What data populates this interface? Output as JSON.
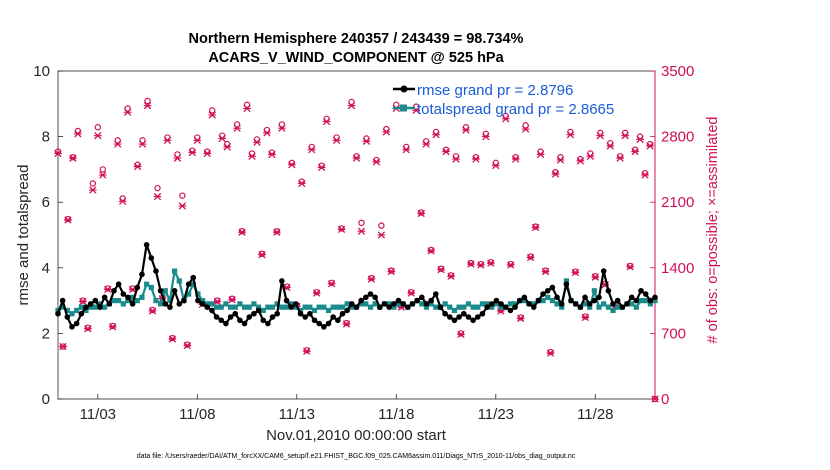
{
  "chart_data": {
    "type": "line",
    "title_line1": "Northern Hemisphere 240357 / 243439 = 98.734%",
    "title_line2": "ACARS_V_WIND_COMPONENT @ 525 hPa",
    "ylabel_left": "rmse and totalspread",
    "ylabel_right": "# of obs: o=possible; ×=assimilated",
    "xlabel": "Nov.01,2010 00:00:00 start",
    "footer": "data file: /Users/raeder/DAI/ATM_forcXX/CAM6_setup/f.e21.FHIST_BGC.f09_025.CAM6assim.011/Diags_NTrS_2010-11/obs_diag_output.nc",
    "x_ticks": [
      {
        "day": 3,
        "label": "11/03"
      },
      {
        "day": 8,
        "label": "11/08"
      },
      {
        "day": 13,
        "label": "11/13"
      },
      {
        "day": 18,
        "label": "11/18"
      },
      {
        "day": 23,
        "label": "11/23"
      },
      {
        "day": 28,
        "label": "11/28"
      }
    ],
    "x_range": [
      1,
      31
    ],
    "y_left": {
      "range": [
        0,
        10
      ],
      "ticks": [
        "0",
        "2",
        "4",
        "6",
        "8",
        "10"
      ]
    },
    "y_right": {
      "range": [
        0,
        3500
      ],
      "ticks": [
        "0",
        "700",
        "1400",
        "2100",
        "2800",
        "3500"
      ]
    },
    "legend": [
      {
        "name": "rmse grand pr = 2.8796",
        "color": "#000000"
      },
      {
        "name": "totalspread grand pr = 2.8665",
        "color": "#1a8a8a"
      }
    ],
    "colors": {
      "rmse": "#000000",
      "spread": "#1a8a8a",
      "obs": "#d1105a"
    },
    "series": [
      {
        "name": "rmse",
        "values": [
          2.6,
          3.0,
          2.5,
          2.2,
          2.3,
          2.6,
          2.8,
          2.9,
          3.0,
          2.8,
          3.1,
          2.9,
          3.3,
          3.5,
          3.2,
          3.1,
          2.9,
          3.4,
          3.8,
          4.7,
          4.3,
          3.9,
          3.3,
          2.9,
          2.8,
          3.3,
          2.9,
          3.0,
          3.5,
          3.7,
          3.0,
          2.9,
          2.8,
          2.7,
          2.5,
          2.4,
          2.3,
          2.5,
          2.6,
          2.4,
          2.3,
          2.5,
          2.6,
          2.7,
          2.4,
          2.3,
          2.5,
          2.6,
          3.6,
          3.0,
          2.8,
          2.9,
          2.6,
          2.5,
          2.6,
          2.4,
          2.3,
          2.2,
          2.3,
          2.5,
          2.4,
          2.6,
          2.7,
          2.9,
          2.8,
          3.0,
          3.1,
          3.2,
          3.1,
          2.8,
          2.9,
          2.8,
          2.9,
          3.0,
          2.9,
          2.8,
          2.9,
          3.0,
          3.1,
          2.9,
          3.0,
          3.2,
          2.8,
          2.6,
          2.5,
          2.4,
          2.5,
          2.6,
          2.5,
          2.4,
          2.5,
          2.6,
          2.8,
          2.9,
          3.0,
          2.9,
          2.8,
          2.7,
          2.8,
          3.0,
          3.1,
          2.9,
          2.8,
          3.0,
          3.2,
          3.3,
          3.4,
          3.1,
          2.9,
          3.5,
          3.0,
          2.9,
          2.8,
          3.1,
          2.9,
          3.0,
          3.1,
          3.9,
          3.3,
          2.9,
          3.0,
          2.8,
          2.9,
          3.1,
          3.0,
          3.3,
          3.2,
          3.0,
          3.1
        ]
      },
      {
        "name": "totalspread",
        "values": [
          2.7,
          2.8,
          2.7,
          2.6,
          2.7,
          2.8,
          2.7,
          2.8,
          2.8,
          2.9,
          2.8,
          2.9,
          3.0,
          3.0,
          2.9,
          3.0,
          3.1,
          3.0,
          3.1,
          3.5,
          3.4,
          3.0,
          2.9,
          3.3,
          3.0,
          3.9,
          3.6,
          3.0,
          3.2,
          3.5,
          3.2,
          3.0,
          2.9,
          2.9,
          2.8,
          2.8,
          2.9,
          2.8,
          2.8,
          2.9,
          2.8,
          2.8,
          2.9,
          2.8,
          2.7,
          2.8,
          2.8,
          2.9,
          2.8,
          2.8,
          2.9,
          2.8,
          2.7,
          2.8,
          2.8,
          2.7,
          2.8,
          2.8,
          2.7,
          2.8,
          2.8,
          2.8,
          2.9,
          2.8,
          2.8,
          2.9,
          2.9,
          2.8,
          2.9,
          2.8,
          2.9,
          2.9,
          2.8,
          2.9,
          2.9,
          2.8,
          2.9,
          3.0,
          2.9,
          2.8,
          2.9,
          2.8,
          2.8,
          2.9,
          2.8,
          2.7,
          2.8,
          2.8,
          2.9,
          2.8,
          2.8,
          2.9,
          2.9,
          2.8,
          2.9,
          2.8,
          2.8,
          2.9,
          2.9,
          3.0,
          3.0,
          2.9,
          2.9,
          3.0,
          3.0,
          3.1,
          3.0,
          2.9,
          2.8,
          3.6,
          3.0,
          2.9,
          2.8,
          2.9,
          2.8,
          3.3,
          2.8,
          2.9,
          2.8,
          2.7,
          2.8,
          2.8,
          2.9,
          2.9,
          2.8,
          3.0,
          3.0,
          2.9,
          3.0
        ]
      }
    ],
    "obs_possible": [
      [
        1.0,
        2640
      ],
      [
        1.25,
        560
      ],
      [
        1.5,
        1920
      ],
      [
        1.75,
        2580
      ],
      [
        2.0,
        2860
      ],
      [
        2.25,
        1050
      ],
      [
        2.5,
        760
      ],
      [
        2.75,
        2300
      ],
      [
        3.0,
        2900
      ],
      [
        3.25,
        2450
      ],
      [
        3.5,
        1180
      ],
      [
        3.75,
        780
      ],
      [
        4.0,
        2760
      ],
      [
        4.25,
        2140
      ],
      [
        4.5,
        3100
      ],
      [
        4.75,
        1180
      ],
      [
        5.0,
        2500
      ],
      [
        5.25,
        2760
      ],
      [
        5.5,
        3180
      ],
      [
        5.75,
        950
      ],
      [
        6.0,
        2250
      ],
      [
        6.25,
        1080
      ],
      [
        6.5,
        2790
      ],
      [
        6.75,
        650
      ],
      [
        7.0,
        2610
      ],
      [
        7.25,
        2170
      ],
      [
        7.5,
        580
      ],
      [
        7.75,
        2650
      ],
      [
        8.0,
        2790
      ],
      [
        8.25,
        1020
      ],
      [
        8.5,
        2640
      ],
      [
        8.75,
        3080
      ],
      [
        9.0,
        1050
      ],
      [
        9.25,
        2810
      ],
      [
        9.5,
        2720
      ],
      [
        9.75,
        1070
      ],
      [
        10.0,
        2930
      ],
      [
        10.25,
        1790
      ],
      [
        10.5,
        3140
      ],
      [
        10.75,
        2620
      ],
      [
        11.0,
        2770
      ],
      [
        11.25,
        1550
      ],
      [
        11.5,
        2870
      ],
      [
        11.75,
        2630
      ],
      [
        12.0,
        1790
      ],
      [
        12.25,
        2930
      ],
      [
        12.5,
        1200
      ],
      [
        12.75,
        2520
      ],
      [
        13.0,
        1000
      ],
      [
        13.25,
        2320
      ],
      [
        13.5,
        520
      ],
      [
        13.75,
        2690
      ],
      [
        14.0,
        1140
      ],
      [
        14.25,
        2490
      ],
      [
        14.5,
        2990
      ],
      [
        14.75,
        1240
      ],
      [
        15.0,
        2790
      ],
      [
        15.25,
        1820
      ],
      [
        15.5,
        810
      ],
      [
        15.75,
        3170
      ],
      [
        16.0,
        2590
      ],
      [
        16.25,
        1880
      ],
      [
        16.5,
        2780
      ],
      [
        16.75,
        1290
      ],
      [
        17.0,
        2550
      ],
      [
        17.25,
        1850
      ],
      [
        17.5,
        2880
      ],
      [
        17.75,
        1370
      ],
      [
        18.0,
        3140
      ],
      [
        18.25,
        990
      ],
      [
        18.5,
        2690
      ],
      [
        18.75,
        1140
      ],
      [
        19.0,
        3120
      ],
      [
        19.25,
        1990
      ],
      [
        19.5,
        2750
      ],
      [
        19.75,
        1590
      ],
      [
        20.0,
        2850
      ],
      [
        20.25,
        1390
      ],
      [
        20.5,
        2660
      ],
      [
        20.75,
        1320
      ],
      [
        21.0,
        2590
      ],
      [
        21.25,
        700
      ],
      [
        21.5,
        2900
      ],
      [
        21.75,
        1450
      ],
      [
        22.0,
        2580
      ],
      [
        22.25,
        1440
      ],
      [
        22.5,
        2830
      ],
      [
        22.75,
        1460
      ],
      [
        23.0,
        2520
      ],
      [
        23.25,
        950
      ],
      [
        23.5,
        3020
      ],
      [
        23.75,
        1440
      ],
      [
        24.0,
        2580
      ],
      [
        24.25,
        870
      ],
      [
        24.5,
        2920
      ],
      [
        24.75,
        1520
      ],
      [
        25.0,
        1840
      ],
      [
        25.25,
        2640
      ],
      [
        25.5,
        1370
      ],
      [
        25.75,
        500
      ],
      [
        26.0,
        2420
      ],
      [
        26.25,
        2580
      ],
      [
        26.75,
        2850
      ],
      [
        27.0,
        1360
      ],
      [
        27.25,
        2560
      ],
      [
        27.5,
        880
      ],
      [
        27.75,
        2620
      ],
      [
        28.0,
        1310
      ],
      [
        28.25,
        2840
      ],
      [
        28.5,
        1230
      ],
      [
        28.75,
        2730
      ],
      [
        29.0,
        1000
      ],
      [
        29.25,
        2590
      ],
      [
        29.5,
        2840
      ],
      [
        29.75,
        1420
      ],
      [
        30.0,
        2660
      ],
      [
        30.25,
        2800
      ],
      [
        30.5,
        2410
      ],
      [
        30.75,
        2720
      ],
      [
        31.0,
        0
      ]
    ],
    "obs_assimilated": [
      [
        1.0,
        2620
      ],
      [
        1.25,
        560
      ],
      [
        1.5,
        1910
      ],
      [
        1.75,
        2570
      ],
      [
        2.0,
        2830
      ],
      [
        2.25,
        1040
      ],
      [
        2.5,
        750
      ],
      [
        2.75,
        2230
      ],
      [
        3.0,
        2810
      ],
      [
        3.25,
        2390
      ],
      [
        3.5,
        1170
      ],
      [
        3.75,
        770
      ],
      [
        4.0,
        2720
      ],
      [
        4.25,
        2110
      ],
      [
        4.5,
        3060
      ],
      [
        4.75,
        1170
      ],
      [
        5.0,
        2480
      ],
      [
        5.25,
        2720
      ],
      [
        5.5,
        3130
      ],
      [
        5.75,
        940
      ],
      [
        6.0,
        2160
      ],
      [
        6.25,
        1070
      ],
      [
        6.5,
        2760
      ],
      [
        6.75,
        640
      ],
      [
        7.0,
        2570
      ],
      [
        7.25,
        2060
      ],
      [
        7.5,
        570
      ],
      [
        7.75,
        2630
      ],
      [
        8.0,
        2760
      ],
      [
        8.25,
        1010
      ],
      [
        8.5,
        2620
      ],
      [
        8.75,
        3030
      ],
      [
        9.0,
        1040
      ],
      [
        9.25,
        2780
      ],
      [
        9.5,
        2690
      ],
      [
        9.75,
        1060
      ],
      [
        10.0,
        2890
      ],
      [
        10.25,
        1780
      ],
      [
        10.5,
        3100
      ],
      [
        10.75,
        2590
      ],
      [
        11.0,
        2740
      ],
      [
        11.25,
        1540
      ],
      [
        11.5,
        2840
      ],
      [
        11.75,
        2610
      ],
      [
        12.0,
        1780
      ],
      [
        12.25,
        2890
      ],
      [
        12.5,
        1190
      ],
      [
        12.75,
        2500
      ],
      [
        13.0,
        990
      ],
      [
        13.25,
        2300
      ],
      [
        13.5,
        510
      ],
      [
        13.75,
        2660
      ],
      [
        14.0,
        1130
      ],
      [
        14.25,
        2470
      ],
      [
        14.5,
        2960
      ],
      [
        14.75,
        1230
      ],
      [
        15.0,
        2760
      ],
      [
        15.25,
        1810
      ],
      [
        15.5,
        800
      ],
      [
        15.75,
        3130
      ],
      [
        16.0,
        2570
      ],
      [
        16.25,
        1790
      ],
      [
        16.5,
        2750
      ],
      [
        16.75,
        1280
      ],
      [
        17.0,
        2530
      ],
      [
        17.25,
        1750
      ],
      [
        17.5,
        2850
      ],
      [
        17.75,
        1360
      ],
      [
        18.0,
        3100
      ],
      [
        18.25,
        980
      ],
      [
        18.5,
        2660
      ],
      [
        18.75,
        1130
      ],
      [
        19.0,
        3080
      ],
      [
        19.25,
        1980
      ],
      [
        19.5,
        2720
      ],
      [
        19.75,
        1580
      ],
      [
        20.0,
        2820
      ],
      [
        20.25,
        1380
      ],
      [
        20.5,
        2640
      ],
      [
        20.75,
        1310
      ],
      [
        21.0,
        2560
      ],
      [
        21.25,
        690
      ],
      [
        21.5,
        2870
      ],
      [
        21.75,
        1440
      ],
      [
        22.0,
        2560
      ],
      [
        22.25,
        1430
      ],
      [
        22.5,
        2800
      ],
      [
        22.75,
        1450
      ],
      [
        23.0,
        2490
      ],
      [
        23.25,
        940
      ],
      [
        23.5,
        2990
      ],
      [
        23.75,
        1430
      ],
      [
        24.0,
        2560
      ],
      [
        24.25,
        860
      ],
      [
        24.5,
        2880
      ],
      [
        24.75,
        1510
      ],
      [
        25.0,
        1830
      ],
      [
        25.25,
        2610
      ],
      [
        25.5,
        1360
      ],
      [
        25.75,
        490
      ],
      [
        26.0,
        2400
      ],
      [
        26.25,
        2550
      ],
      [
        26.75,
        2820
      ],
      [
        27.0,
        1350
      ],
      [
        27.25,
        2540
      ],
      [
        27.5,
        870
      ],
      [
        27.75,
        2590
      ],
      [
        28.0,
        1300
      ],
      [
        28.25,
        2810
      ],
      [
        28.5,
        1220
      ],
      [
        28.75,
        2700
      ],
      [
        29.0,
        990
      ],
      [
        29.25,
        2570
      ],
      [
        29.5,
        2810
      ],
      [
        29.75,
        1410
      ],
      [
        30.0,
        2640
      ],
      [
        30.25,
        2770
      ],
      [
        30.5,
        2390
      ],
      [
        30.75,
        2700
      ],
      [
        31.0,
        0
      ]
    ]
  }
}
